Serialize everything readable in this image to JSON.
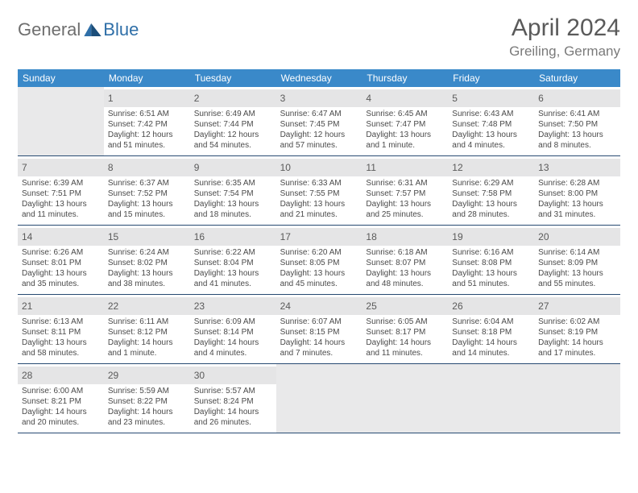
{
  "brand": {
    "part1": "General",
    "part2": "Blue"
  },
  "title": "April 2024",
  "location": "Greiling, Germany",
  "colors": {
    "header_bg": "#3a89c9",
    "header_fg": "#ffffff",
    "shade_bg": "#e5e5e6",
    "rule": "#274a72",
    "text": "#4a4a4a",
    "title": "#5a5a5a",
    "brand_gray": "#6e6e6e",
    "brand_blue": "#2f6fa8"
  },
  "dayNames": [
    "Sunday",
    "Monday",
    "Tuesday",
    "Wednesday",
    "Thursday",
    "Friday",
    "Saturday"
  ],
  "weeks": [
    [
      {
        "n": "",
        "sr": "",
        "ss": "",
        "dl": ""
      },
      {
        "n": "1",
        "sr": "Sunrise: 6:51 AM",
        "ss": "Sunset: 7:42 PM",
        "dl": "Daylight: 12 hours and 51 minutes."
      },
      {
        "n": "2",
        "sr": "Sunrise: 6:49 AM",
        "ss": "Sunset: 7:44 PM",
        "dl": "Daylight: 12 hours and 54 minutes."
      },
      {
        "n": "3",
        "sr": "Sunrise: 6:47 AM",
        "ss": "Sunset: 7:45 PM",
        "dl": "Daylight: 12 hours and 57 minutes."
      },
      {
        "n": "4",
        "sr": "Sunrise: 6:45 AM",
        "ss": "Sunset: 7:47 PM",
        "dl": "Daylight: 13 hours and 1 minute."
      },
      {
        "n": "5",
        "sr": "Sunrise: 6:43 AM",
        "ss": "Sunset: 7:48 PM",
        "dl": "Daylight: 13 hours and 4 minutes."
      },
      {
        "n": "6",
        "sr": "Sunrise: 6:41 AM",
        "ss": "Sunset: 7:50 PM",
        "dl": "Daylight: 13 hours and 8 minutes."
      }
    ],
    [
      {
        "n": "7",
        "sr": "Sunrise: 6:39 AM",
        "ss": "Sunset: 7:51 PM",
        "dl": "Daylight: 13 hours and 11 minutes."
      },
      {
        "n": "8",
        "sr": "Sunrise: 6:37 AM",
        "ss": "Sunset: 7:52 PM",
        "dl": "Daylight: 13 hours and 15 minutes."
      },
      {
        "n": "9",
        "sr": "Sunrise: 6:35 AM",
        "ss": "Sunset: 7:54 PM",
        "dl": "Daylight: 13 hours and 18 minutes."
      },
      {
        "n": "10",
        "sr": "Sunrise: 6:33 AM",
        "ss": "Sunset: 7:55 PM",
        "dl": "Daylight: 13 hours and 21 minutes."
      },
      {
        "n": "11",
        "sr": "Sunrise: 6:31 AM",
        "ss": "Sunset: 7:57 PM",
        "dl": "Daylight: 13 hours and 25 minutes."
      },
      {
        "n": "12",
        "sr": "Sunrise: 6:29 AM",
        "ss": "Sunset: 7:58 PM",
        "dl": "Daylight: 13 hours and 28 minutes."
      },
      {
        "n": "13",
        "sr": "Sunrise: 6:28 AM",
        "ss": "Sunset: 8:00 PM",
        "dl": "Daylight: 13 hours and 31 minutes."
      }
    ],
    [
      {
        "n": "14",
        "sr": "Sunrise: 6:26 AM",
        "ss": "Sunset: 8:01 PM",
        "dl": "Daylight: 13 hours and 35 minutes."
      },
      {
        "n": "15",
        "sr": "Sunrise: 6:24 AM",
        "ss": "Sunset: 8:02 PM",
        "dl": "Daylight: 13 hours and 38 minutes."
      },
      {
        "n": "16",
        "sr": "Sunrise: 6:22 AM",
        "ss": "Sunset: 8:04 PM",
        "dl": "Daylight: 13 hours and 41 minutes."
      },
      {
        "n": "17",
        "sr": "Sunrise: 6:20 AM",
        "ss": "Sunset: 8:05 PM",
        "dl": "Daylight: 13 hours and 45 minutes."
      },
      {
        "n": "18",
        "sr": "Sunrise: 6:18 AM",
        "ss": "Sunset: 8:07 PM",
        "dl": "Daylight: 13 hours and 48 minutes."
      },
      {
        "n": "19",
        "sr": "Sunrise: 6:16 AM",
        "ss": "Sunset: 8:08 PM",
        "dl": "Daylight: 13 hours and 51 minutes."
      },
      {
        "n": "20",
        "sr": "Sunrise: 6:14 AM",
        "ss": "Sunset: 8:09 PM",
        "dl": "Daylight: 13 hours and 55 minutes."
      }
    ],
    [
      {
        "n": "21",
        "sr": "Sunrise: 6:13 AM",
        "ss": "Sunset: 8:11 PM",
        "dl": "Daylight: 13 hours and 58 minutes."
      },
      {
        "n": "22",
        "sr": "Sunrise: 6:11 AM",
        "ss": "Sunset: 8:12 PM",
        "dl": "Daylight: 14 hours and 1 minute."
      },
      {
        "n": "23",
        "sr": "Sunrise: 6:09 AM",
        "ss": "Sunset: 8:14 PM",
        "dl": "Daylight: 14 hours and 4 minutes."
      },
      {
        "n": "24",
        "sr": "Sunrise: 6:07 AM",
        "ss": "Sunset: 8:15 PM",
        "dl": "Daylight: 14 hours and 7 minutes."
      },
      {
        "n": "25",
        "sr": "Sunrise: 6:05 AM",
        "ss": "Sunset: 8:17 PM",
        "dl": "Daylight: 14 hours and 11 minutes."
      },
      {
        "n": "26",
        "sr": "Sunrise: 6:04 AM",
        "ss": "Sunset: 8:18 PM",
        "dl": "Daylight: 14 hours and 14 minutes."
      },
      {
        "n": "27",
        "sr": "Sunrise: 6:02 AM",
        "ss": "Sunset: 8:19 PM",
        "dl": "Daylight: 14 hours and 17 minutes."
      }
    ],
    [
      {
        "n": "28",
        "sr": "Sunrise: 6:00 AM",
        "ss": "Sunset: 8:21 PM",
        "dl": "Daylight: 14 hours and 20 minutes."
      },
      {
        "n": "29",
        "sr": "Sunrise: 5:59 AM",
        "ss": "Sunset: 8:22 PM",
        "dl": "Daylight: 14 hours and 23 minutes."
      },
      {
        "n": "30",
        "sr": "Sunrise: 5:57 AM",
        "ss": "Sunset: 8:24 PM",
        "dl": "Daylight: 14 hours and 26 minutes."
      },
      {
        "n": "",
        "sr": "",
        "ss": "",
        "dl": ""
      },
      {
        "n": "",
        "sr": "",
        "ss": "",
        "dl": ""
      },
      {
        "n": "",
        "sr": "",
        "ss": "",
        "dl": ""
      },
      {
        "n": "",
        "sr": "",
        "ss": "",
        "dl": ""
      }
    ]
  ]
}
